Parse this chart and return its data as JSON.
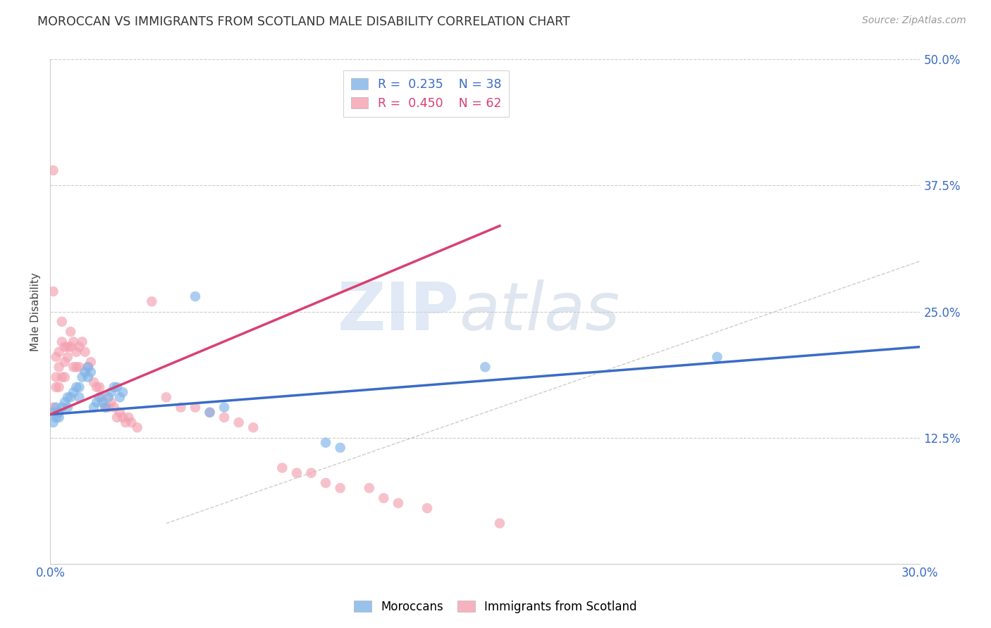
{
  "title": "MOROCCAN VS IMMIGRANTS FROM SCOTLAND MALE DISABILITY CORRELATION CHART",
  "source": "Source: ZipAtlas.com",
  "ylabel": "Male Disability",
  "xlim": [
    0.0,
    0.3
  ],
  "ylim": [
    0.0,
    0.5
  ],
  "xticks": [
    0.0,
    0.05,
    0.1,
    0.15,
    0.2,
    0.25,
    0.3
  ],
  "xticklabels": [
    "0.0%",
    "",
    "",
    "",
    "",
    "",
    "30.0%"
  ],
  "yticks": [
    0.0,
    0.125,
    0.25,
    0.375,
    0.5
  ],
  "yticklabels": [
    "",
    "12.5%",
    "25.0%",
    "37.5%",
    "50.0%"
  ],
  "blue_color": "#7FB3E8",
  "pink_color": "#F4A0B0",
  "blue_line_color": "#3A6CC6",
  "pink_line_color": "#D94070",
  "blue_points_x": [
    0.001,
    0.001,
    0.002,
    0.002,
    0.003,
    0.003,
    0.004,
    0.005,
    0.006,
    0.006,
    0.007,
    0.008,
    0.009,
    0.01,
    0.01,
    0.011,
    0.012,
    0.013,
    0.013,
    0.014,
    0.015,
    0.016,
    0.017,
    0.018,
    0.019,
    0.02,
    0.021,
    0.022,
    0.023,
    0.024,
    0.025,
    0.05,
    0.055,
    0.06,
    0.095,
    0.1,
    0.15,
    0.23
  ],
  "blue_points_y": [
    0.15,
    0.14,
    0.155,
    0.145,
    0.15,
    0.145,
    0.155,
    0.16,
    0.165,
    0.155,
    0.165,
    0.17,
    0.175,
    0.175,
    0.165,
    0.185,
    0.19,
    0.185,
    0.195,
    0.19,
    0.155,
    0.16,
    0.165,
    0.16,
    0.155,
    0.165,
    0.17,
    0.175,
    0.175,
    0.165,
    0.17,
    0.265,
    0.15,
    0.155,
    0.12,
    0.115,
    0.195,
    0.205
  ],
  "pink_points_x": [
    0.001,
    0.001,
    0.001,
    0.002,
    0.002,
    0.002,
    0.003,
    0.003,
    0.003,
    0.004,
    0.004,
    0.004,
    0.005,
    0.005,
    0.005,
    0.006,
    0.006,
    0.007,
    0.007,
    0.008,
    0.008,
    0.009,
    0.009,
    0.01,
    0.01,
    0.011,
    0.012,
    0.013,
    0.014,
    0.015,
    0.016,
    0.017,
    0.018,
    0.019,
    0.02,
    0.021,
    0.022,
    0.023,
    0.024,
    0.025,
    0.026,
    0.027,
    0.028,
    0.03,
    0.035,
    0.04,
    0.045,
    0.05,
    0.055,
    0.06,
    0.065,
    0.07,
    0.08,
    0.085,
    0.09,
    0.095,
    0.1,
    0.11,
    0.115,
    0.12,
    0.13,
    0.155
  ],
  "pink_points_y": [
    0.155,
    0.39,
    0.27,
    0.185,
    0.175,
    0.205,
    0.21,
    0.195,
    0.175,
    0.22,
    0.185,
    0.24,
    0.215,
    0.2,
    0.185,
    0.215,
    0.205,
    0.23,
    0.215,
    0.22,
    0.195,
    0.195,
    0.21,
    0.215,
    0.195,
    0.22,
    0.21,
    0.195,
    0.2,
    0.18,
    0.175,
    0.175,
    0.165,
    0.155,
    0.155,
    0.16,
    0.155,
    0.145,
    0.15,
    0.145,
    0.14,
    0.145,
    0.14,
    0.135,
    0.26,
    0.165,
    0.155,
    0.155,
    0.15,
    0.145,
    0.14,
    0.135,
    0.095,
    0.09,
    0.09,
    0.08,
    0.075,
    0.075,
    0.065,
    0.06,
    0.055,
    0.04
  ],
  "blue_line_x": [
    0.0,
    0.3
  ],
  "blue_line_y": [
    0.148,
    0.215
  ],
  "pink_line_x": [
    0.0,
    0.155
  ],
  "pink_line_y": [
    0.148,
    0.335
  ],
  "diag_line_x": [
    0.04,
    0.3
  ],
  "diag_line_y": [
    0.04,
    0.3
  ]
}
